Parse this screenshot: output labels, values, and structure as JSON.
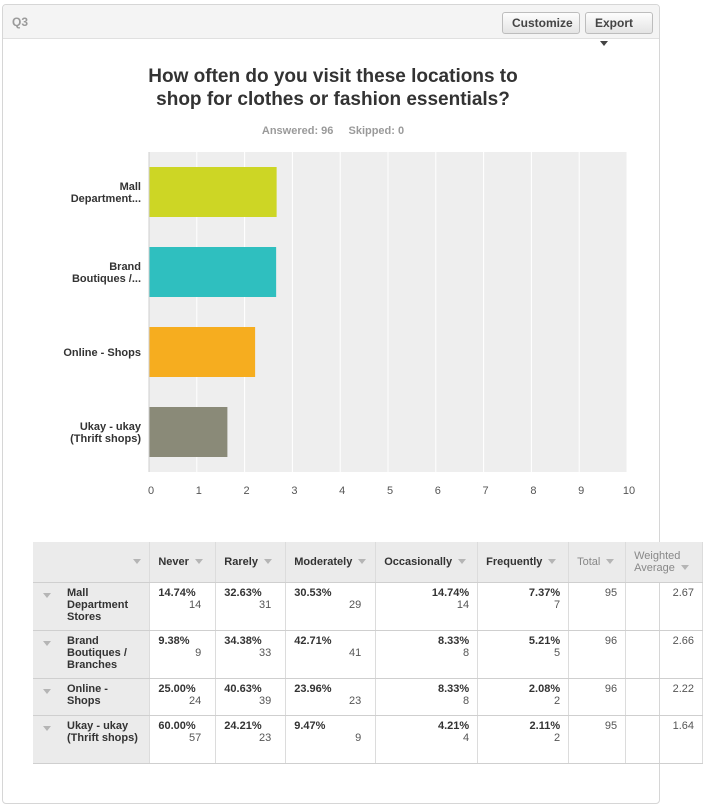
{
  "header": {
    "question_number": "Q3",
    "customize_label": "Customize",
    "export_label": "Export"
  },
  "title_line1": "How often do you visit these locations to",
  "title_line2": "shop for clothes or fashion essentials?",
  "stats": {
    "answered": "Answered: 96",
    "skipped": "Skipped: 0"
  },
  "chart_data": {
    "type": "bar",
    "orientation": "horizontal",
    "categories": [
      [
        "Mall",
        "Department..."
      ],
      [
        "Brand",
        "Boutiques /..."
      ],
      [
        "Online - Shops"
      ],
      [
        "Ukay - ukay",
        "(Thrift shops)"
      ]
    ],
    "values": [
      2.67,
      2.66,
      2.22,
      1.64
    ],
    "colors": [
      "#cdd625",
      "#2fbfbf",
      "#f6ad1f",
      "#8a8a78"
    ],
    "xlim": [
      0,
      10
    ],
    "xticks": [
      "0",
      "1",
      "2",
      "3",
      "4",
      "5",
      "6",
      "7",
      "8",
      "9",
      "10"
    ],
    "grid": true
  },
  "table": {
    "columns": [
      "Never",
      "Rarely",
      "Moderately",
      "Occasionally",
      "Frequently"
    ],
    "total_label": "Total",
    "wavg_label": "Weighted Average",
    "rows": [
      {
        "label": "Mall Department Stores",
        "cells": [
          [
            "14.74%",
            "14"
          ],
          [
            "32.63%",
            "31"
          ],
          [
            "30.53%",
            "29"
          ],
          [
            "14.74%",
            "14"
          ],
          [
            "7.37%",
            "7"
          ]
        ],
        "total": "95",
        "wavg": "2.67"
      },
      {
        "label": "Brand Boutiques / Branches",
        "cells": [
          [
            "9.38%",
            "9"
          ],
          [
            "34.38%",
            "33"
          ],
          [
            "42.71%",
            "41"
          ],
          [
            "8.33%",
            "8"
          ],
          [
            "5.21%",
            "5"
          ]
        ],
        "total": "96",
        "wavg": "2.66"
      },
      {
        "label": "Online - Shops",
        "cells": [
          [
            "25.00%",
            "24"
          ],
          [
            "40.63%",
            "39"
          ],
          [
            "23.96%",
            "23"
          ],
          [
            "8.33%",
            "8"
          ],
          [
            "2.08%",
            "2"
          ]
        ],
        "total": "96",
        "wavg": "2.22"
      },
      {
        "label": "Ukay - ukay (Thrift shops)",
        "cells": [
          [
            "60.00%",
            "57"
          ],
          [
            "24.21%",
            "23"
          ],
          [
            "9.47%",
            "9"
          ],
          [
            "4.21%",
            "4"
          ],
          [
            "2.11%",
            "2"
          ]
        ],
        "total": "95",
        "wavg": "1.64"
      }
    ]
  }
}
